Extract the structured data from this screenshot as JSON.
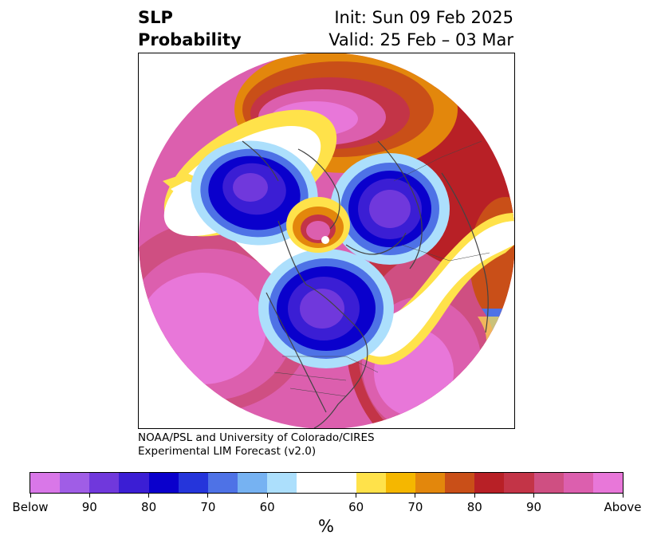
{
  "header": {
    "title_line1": "SLP",
    "title_line2": "Probability",
    "init": "Init: Sun 09 Feb 2025",
    "valid": "Valid: 25 Feb – 03 Mar"
  },
  "credit": {
    "line1": "NOAA/PSL and University of Colorado/CIRES",
    "line2": "Experimental LIM Forecast (v2.0)"
  },
  "colorbar": {
    "unit": "%",
    "colors": [
      "#d977e8",
      "#a05de6",
      "#7038dc",
      "#3b1ed4",
      "#0a00cc",
      "#2535db",
      "#4e72e6",
      "#76b2f2",
      "#acdffc",
      "#ffffff",
      "#ffe24a",
      "#f5b700",
      "#e3870c",
      "#c94f18",
      "#b82026",
      "#c33447",
      "#cf4f82",
      "#dc5fae",
      "#e877d9"
    ],
    "tick_labels": [
      "Below",
      "90",
      "80",
      "70",
      "60",
      "60",
      "70",
      "80",
      "90",
      "Above"
    ]
  },
  "map": {
    "colors": {
      "ocean_white": "#ffffff",
      "coast": "#444444"
    }
  }
}
